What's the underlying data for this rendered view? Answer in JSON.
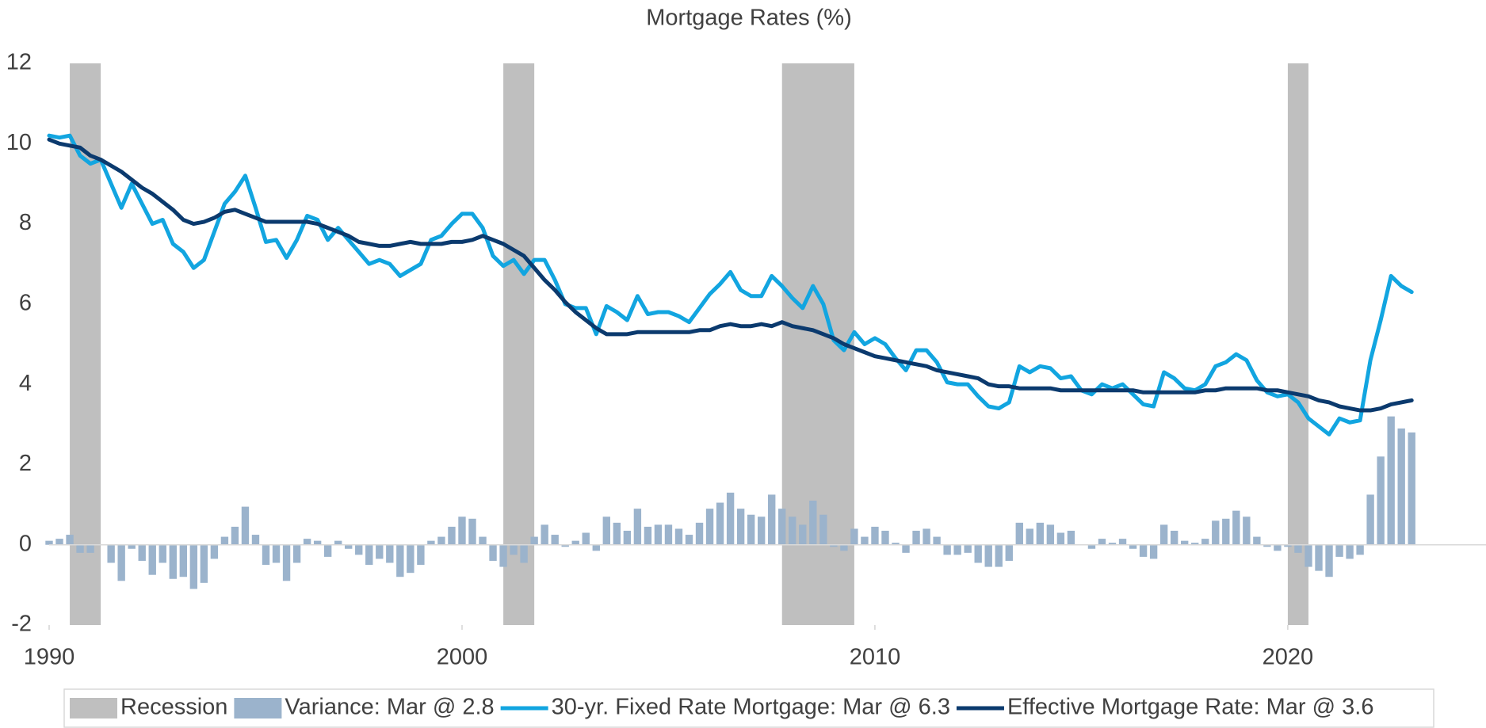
{
  "chart_data": {
    "type": "combo",
    "title": "Mortgage Rates (%)",
    "xlim": [
      1990,
      2024.8
    ],
    "xticks": [
      1990,
      2000,
      2010,
      2020
    ],
    "ylim": [
      -2,
      12
    ],
    "yticks": [
      -2,
      0,
      2,
      4,
      6,
      8,
      10,
      12
    ],
    "recession": {
      "name": "Recession",
      "color": "#bfbfbf",
      "spans": [
        [
          1990.5,
          1991.25
        ],
        [
          2001,
          2001.75
        ],
        [
          2007.75,
          2009.5
        ],
        [
          2020,
          2020.5
        ]
      ]
    },
    "x": [
      1990,
      1990.25,
      1990.5,
      1990.75,
      1991,
      1991.25,
      1991.5,
      1991.75,
      1992,
      1992.25,
      1992.5,
      1992.75,
      1993,
      1993.25,
      1993.5,
      1993.75,
      1994,
      1994.25,
      1994.5,
      1994.75,
      1995,
      1995.25,
      1995.5,
      1995.75,
      1996,
      1996.25,
      1996.5,
      1996.75,
      1997,
      1997.25,
      1997.5,
      1997.75,
      1998,
      1998.25,
      1998.5,
      1998.75,
      1999,
      1999.25,
      1999.5,
      1999.75,
      2000,
      2000.25,
      2000.5,
      2000.75,
      2001,
      2001.25,
      2001.5,
      2001.75,
      2002,
      2002.25,
      2002.5,
      2002.75,
      2003,
      2003.25,
      2003.5,
      2003.75,
      2004,
      2004.25,
      2004.5,
      2004.75,
      2005,
      2005.25,
      2005.5,
      2005.75,
      2006,
      2006.25,
      2006.5,
      2006.75,
      2007,
      2007.25,
      2007.5,
      2007.75,
      2008,
      2008.25,
      2008.5,
      2008.75,
      2009,
      2009.25,
      2009.5,
      2009.75,
      2010,
      2010.25,
      2010.5,
      2010.75,
      2011,
      2011.25,
      2011.5,
      2011.75,
      2012,
      2012.25,
      2012.5,
      2012.75,
      2013,
      2013.25,
      2013.5,
      2013.75,
      2014,
      2014.25,
      2014.5,
      2014.75,
      2015,
      2015.25,
      2015.5,
      2015.75,
      2016,
      2016.25,
      2016.5,
      2016.75,
      2017,
      2017.25,
      2017.5,
      2017.75,
      2018,
      2018.25,
      2018.5,
      2018.75,
      2019,
      2019.25,
      2019.5,
      2019.75,
      2020,
      2020.25,
      2020.5,
      2020.75,
      2021,
      2021.25,
      2021.5,
      2021.75,
      2022,
      2022.25,
      2022.5,
      2022.75,
      2023
    ],
    "series": [
      {
        "name": "Variance: Mar @ 2.8",
        "type": "bar",
        "color": "#9bb3cc",
        "values": [
          0.1,
          0.15,
          0.25,
          -0.2,
          -0.2,
          0,
          -0.45,
          -0.9,
          -0.1,
          -0.4,
          -0.75,
          -0.45,
          -0.85,
          -0.8,
          -1.1,
          -0.95,
          -0.35,
          0.2,
          0.45,
          0.95,
          0.25,
          -0.5,
          -0.45,
          -0.9,
          -0.45,
          0.15,
          0.1,
          -0.3,
          0.1,
          -0.1,
          -0.25,
          -0.5,
          -0.35,
          -0.45,
          -0.8,
          -0.7,
          -0.5,
          0.1,
          0.2,
          0.45,
          0.7,
          0.65,
          0.2,
          -0.4,
          -0.55,
          -0.25,
          -0.45,
          0.2,
          0.5,
          0.25,
          -0.05,
          0.1,
          0.3,
          -0.15,
          0.7,
          0.55,
          0.35,
          0.9,
          0.45,
          0.5,
          0.5,
          0.4,
          0.25,
          0.55,
          0.9,
          1.05,
          1.3,
          0.9,
          0.75,
          0.7,
          1.25,
          0.9,
          0.7,
          0.5,
          1.1,
          0.75,
          -0.05,
          -0.15,
          0.4,
          0.2,
          0.45,
          0.35,
          0.05,
          -0.2,
          0.35,
          0.4,
          0.2,
          -0.25,
          -0.25,
          -0.2,
          -0.45,
          -0.55,
          -0.55,
          -0.4,
          0.55,
          0.4,
          0.55,
          0.5,
          0.3,
          0.35,
          0,
          -0.1,
          0.15,
          0.05,
          0.15,
          -0.1,
          -0.3,
          -0.35,
          0.5,
          0.35,
          0.1,
          0.05,
          0.15,
          0.6,
          0.65,
          0.85,
          0.7,
          0.2,
          -0.05,
          -0.15,
          -0.05,
          -0.2,
          -0.55,
          -0.65,
          -0.8,
          -0.3,
          -0.35,
          -0.25,
          1.25,
          2.2,
          3.2,
          2.9,
          2.8
        ]
      },
      {
        "name": "30-yr. Fixed Rate Mortgage: Mar @ 6.3",
        "type": "line",
        "color": "#12a5e0",
        "values": [
          10.2,
          10.15,
          10.2,
          9.7,
          9.5,
          9.6,
          9.0,
          8.4,
          9.0,
          8.5,
          8.0,
          8.1,
          7.5,
          7.3,
          6.9,
          7.1,
          7.8,
          8.5,
          8.8,
          9.2,
          8.4,
          7.55,
          7.6,
          7.15,
          7.6,
          8.2,
          8.1,
          7.6,
          7.9,
          7.6,
          7.3,
          7.0,
          7.1,
          7.0,
          6.7,
          6.85,
          7.0,
          7.6,
          7.7,
          8.0,
          8.25,
          8.25,
          7.9,
          7.2,
          6.95,
          7.1,
          6.75,
          7.1,
          7.1,
          6.6,
          6.0,
          5.9,
          5.9,
          5.25,
          5.95,
          5.8,
          5.6,
          6.2,
          5.75,
          5.8,
          5.8,
          5.7,
          5.55,
          5.9,
          6.25,
          6.5,
          6.8,
          6.35,
          6.2,
          6.2,
          6.7,
          6.45,
          6.15,
          5.9,
          6.45,
          6.0,
          5.1,
          4.85,
          5.3,
          5.0,
          5.15,
          5.0,
          4.65,
          4.35,
          4.85,
          4.85,
          4.55,
          4.05,
          4.0,
          4.0,
          3.7,
          3.45,
          3.4,
          3.55,
          4.45,
          4.3,
          4.45,
          4.4,
          4.15,
          4.2,
          3.85,
          3.75,
          4.0,
          3.9,
          4.0,
          3.75,
          3.5,
          3.45,
          4.3,
          4.15,
          3.9,
          3.85,
          4.0,
          4.45,
          4.55,
          4.75,
          4.6,
          4.1,
          3.8,
          3.7,
          3.75,
          3.55,
          3.15,
          2.95,
          2.75,
          3.15,
          3.05,
          3.1,
          4.6,
          5.6,
          6.7,
          6.45,
          6.3
        ]
      },
      {
        "name": "Effective Mortgage Rate: Mar @ 3.6",
        "type": "line",
        "color": "#0b3a6e",
        "values": [
          10.1,
          10.0,
          9.95,
          9.9,
          9.7,
          9.6,
          9.45,
          9.3,
          9.1,
          8.9,
          8.75,
          8.55,
          8.35,
          8.1,
          8.0,
          8.05,
          8.15,
          8.3,
          8.35,
          8.25,
          8.15,
          8.05,
          8.05,
          8.05,
          8.05,
          8.05,
          8.0,
          7.9,
          7.8,
          7.7,
          7.55,
          7.5,
          7.45,
          7.45,
          7.5,
          7.55,
          7.5,
          7.5,
          7.5,
          7.55,
          7.55,
          7.6,
          7.7,
          7.6,
          7.5,
          7.35,
          7.2,
          6.9,
          6.6,
          6.35,
          6.05,
          5.8,
          5.6,
          5.4,
          5.25,
          5.25,
          5.25,
          5.3,
          5.3,
          5.3,
          5.3,
          5.3,
          5.3,
          5.35,
          5.35,
          5.45,
          5.5,
          5.45,
          5.45,
          5.5,
          5.45,
          5.55,
          5.45,
          5.4,
          5.35,
          5.25,
          5.15,
          5.0,
          4.9,
          4.8,
          4.7,
          4.65,
          4.6,
          4.55,
          4.5,
          4.45,
          4.35,
          4.3,
          4.25,
          4.2,
          4.15,
          4.0,
          3.95,
          3.95,
          3.9,
          3.9,
          3.9,
          3.9,
          3.85,
          3.85,
          3.85,
          3.85,
          3.85,
          3.85,
          3.85,
          3.85,
          3.8,
          3.8,
          3.8,
          3.8,
          3.8,
          3.8,
          3.85,
          3.85,
          3.9,
          3.9,
          3.9,
          3.9,
          3.85,
          3.85,
          3.8,
          3.75,
          3.7,
          3.6,
          3.55,
          3.45,
          3.4,
          3.35,
          3.35,
          3.4,
          3.5,
          3.55,
          3.6
        ]
      }
    ]
  }
}
